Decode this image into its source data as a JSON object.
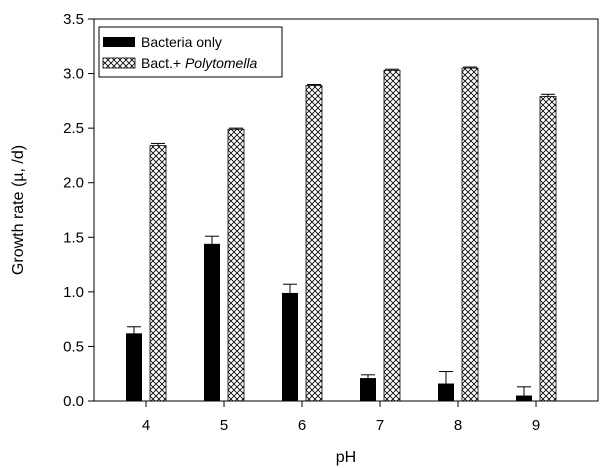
{
  "chart_data": {
    "type": "bar",
    "xlabel": "pH",
    "ylabel": "Growth rate (µ, /d)",
    "categories": [
      "4",
      "5",
      "6",
      "7",
      "8",
      "9"
    ],
    "ylim": [
      0,
      3.5
    ],
    "yticks": [
      "0.0",
      "0.5",
      "1.0",
      "1.5",
      "2.0",
      "2.5",
      "3.0",
      "3.5"
    ],
    "grid": false,
    "legend_position": "top-left",
    "series": [
      {
        "name": "Bacteria only",
        "fill": "solid",
        "color": "#000000",
        "values": [
          0.62,
          1.44,
          0.99,
          0.21,
          0.16,
          0.05
        ],
        "errors": [
          0.06,
          0.07,
          0.08,
          0.03,
          0.11,
          0.08
        ]
      },
      {
        "name_prefix": "Bact.+ ",
        "name_species": "Polytomella",
        "fill": "crosshatch",
        "color": "#000000",
        "values": [
          2.34,
          2.49,
          2.89,
          3.03,
          3.05,
          2.79
        ],
        "errors": [
          0.02,
          0.01,
          0.01,
          0.01,
          0.01,
          0.02
        ]
      }
    ]
  }
}
